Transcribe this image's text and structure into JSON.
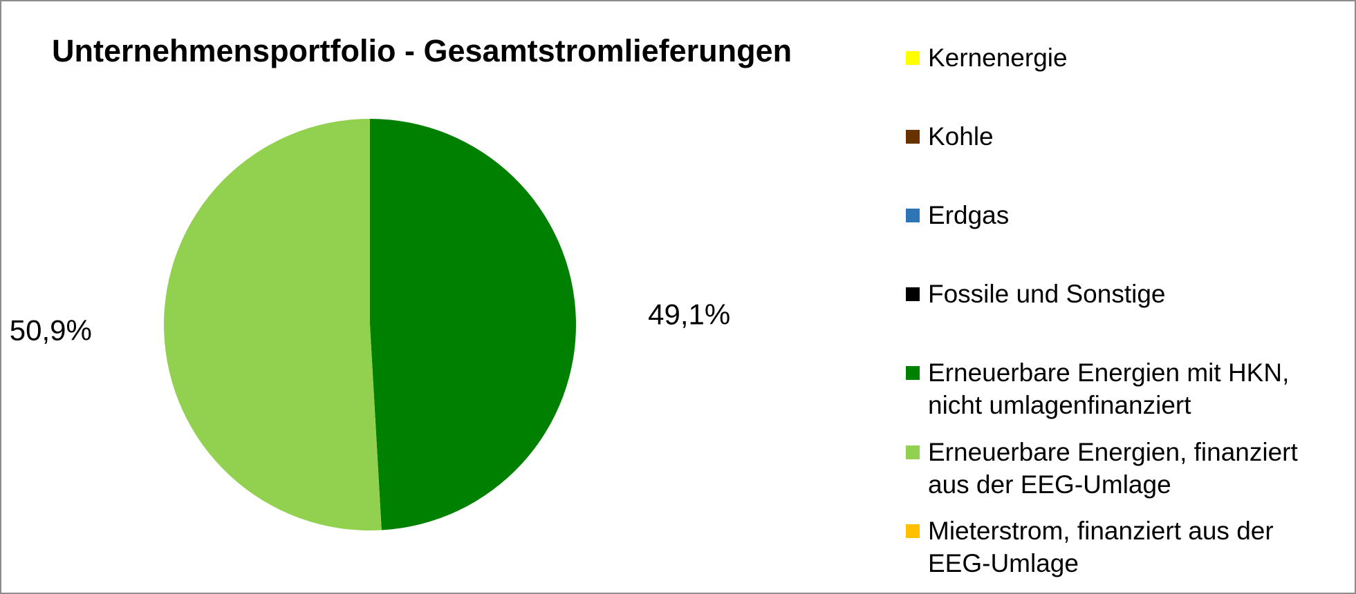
{
  "chart_data": {
    "type": "pie",
    "title": "Unternehmensportfolio  - Gesamtstromlieferungen",
    "categories": [
      "Kernenergie",
      "Kohle",
      "Erdgas",
      "Fossile und Sonstige",
      "Erneuerbare Energien mit HKN, nicht umlagenfinanziert",
      "Erneuerbare Energien, finanziert aus der EEG-Umlage",
      "Mieterstrom, finanziert aus der EEG-Umlage"
    ],
    "values": [
      0,
      0,
      0,
      0,
      49.1,
      50.9,
      0
    ],
    "value_labels": [
      null,
      null,
      null,
      null,
      "49,1%",
      "50,9%",
      null
    ],
    "colors": [
      "#ffff00",
      "#663300",
      "#2e75b6",
      "#000000",
      "#008000",
      "#92d050",
      "#ffc000"
    ],
    "legend": "right"
  }
}
